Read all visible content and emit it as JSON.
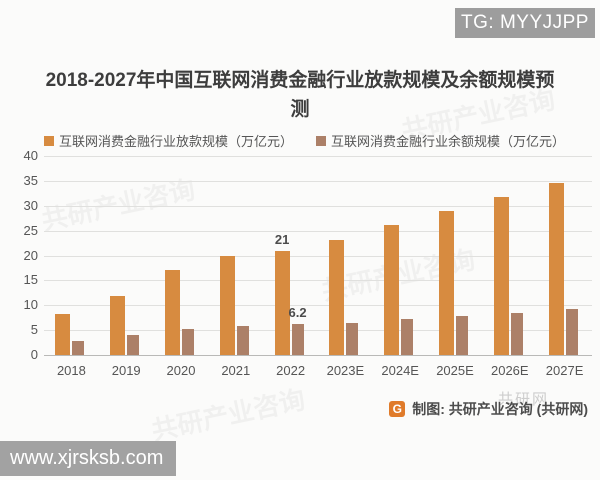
{
  "badge": {
    "text": "TG: MYYJJPP"
  },
  "title": "2018-2027年中国互联网消费金融行业放款规模及余额规模预测",
  "chart_data": {
    "type": "bar",
    "title": "2018-2027年中国互联网消费金融行业放款规模及余额规模预测",
    "categories": [
      "2018",
      "2019",
      "2020",
      "2021",
      "2022",
      "2023E",
      "2024E",
      "2025E",
      "2026E",
      "2027E"
    ],
    "series": [
      {
        "name": "互联网消费金融行业放款规模（万亿元）",
        "color": "#D78B40",
        "values": [
          8.2,
          11.8,
          17.0,
          20.0,
          21.0,
          23.2,
          26.1,
          29.0,
          31.7,
          34.5
        ]
      },
      {
        "name": "互联网消费金融行业余额规模（万亿元）",
        "color": "#AC8068",
        "values": [
          2.8,
          4.0,
          5.2,
          5.8,
          6.2,
          6.5,
          7.2,
          7.9,
          8.5,
          9.2
        ]
      }
    ],
    "ylim": [
      0,
      40
    ],
    "ytick_step": 5,
    "grid": true,
    "legend_position": "top",
    "annotations": [
      {
        "category": "2022",
        "series": 0,
        "text": "21"
      },
      {
        "category": "2022",
        "series": 1,
        "text": "6.2"
      }
    ]
  },
  "footer": {
    "logo_letter": "G",
    "credit": "制图: 共研产业咨询 (共研网)"
  },
  "site_bar": {
    "text": "www.xjrsksb.com"
  },
  "watermark": {
    "text": "共研产业咨询",
    "footer_text": "共研网"
  }
}
